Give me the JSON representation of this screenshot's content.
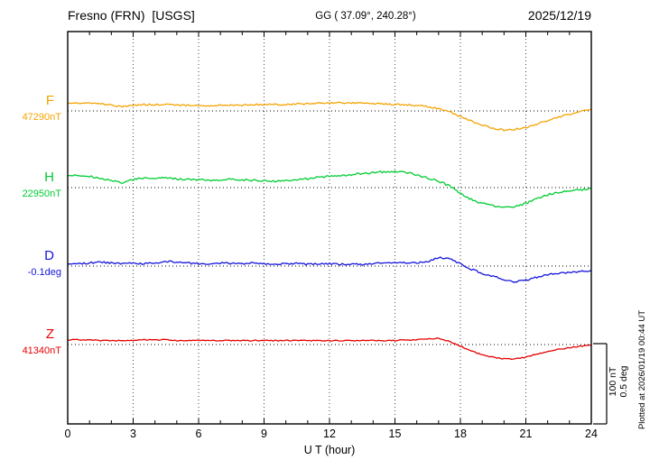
{
  "header": {
    "station": "Fresno (FRN)  [USGS]",
    "coords": "GG ( 37.09°, 240.28°)",
    "date": "2025/12/19"
  },
  "xlabel": "U T (hour)",
  "scale_bar": {
    "line1": "100 nT",
    "line2": "0.5 deg"
  },
  "footer_note": "Plotted at 2026/01/19 00:44 UT",
  "chart_data": {
    "type": "line",
    "title": "Fresno (FRN) [USGS] magnetogram 2025/12/19",
    "x_unit": "hour",
    "x_range": [
      0,
      24
    ],
    "x_ticks": [
      0,
      3,
      6,
      9,
      12,
      15,
      18,
      21,
      24
    ],
    "x_step_hours": 0.5,
    "grid": "dotted-vertical-every-3h-and-dotted-baselines",
    "scale": {
      "nT_per_division": 100,
      "deg_per_division": 0.5
    },
    "series": [
      {
        "id": "F",
        "label": "F",
        "baseline_label": "47290nT",
        "baseline_value": 47290,
        "unit": "nT",
        "color": "#f5a300",
        "offsets": [
          9,
          10,
          10,
          9,
          7,
          5,
          7,
          8,
          8,
          8,
          7,
          7,
          7,
          6,
          7,
          7,
          7,
          8,
          8,
          8,
          8,
          9,
          9,
          10,
          10,
          10,
          10,
          10,
          9,
          9,
          8,
          8,
          7,
          5,
          3,
          -1,
          -7,
          -13,
          -18,
          -22,
          -24,
          -23,
          -21,
          -17,
          -12,
          -8,
          -4,
          -1,
          2
        ]
      },
      {
        "id": "H",
        "label": "H",
        "baseline_label": "22950nT",
        "baseline_value": 22950,
        "unit": "nT",
        "color": "#00cc33",
        "offsets": [
          16,
          15,
          14,
          12,
          9,
          6,
          10,
          12,
          12,
          13,
          11,
          10,
          10,
          9,
          10,
          11,
          10,
          9,
          9,
          8,
          9,
          10,
          11,
          13,
          14,
          15,
          16,
          18,
          19,
          20,
          20,
          19,
          16,
          12,
          8,
          2,
          -7,
          -15,
          -20,
          -23,
          -25,
          -24,
          -20,
          -14,
          -9,
          -6,
          -4,
          -3,
          -1
        ]
      },
      {
        "id": "D",
        "label": "D",
        "baseline_label": "-0.1deg",
        "baseline_value": -0.1,
        "unit": "deg",
        "color": "#1414dd",
        "offsets": [
          0.015,
          0.015,
          0.02,
          0.025,
          0.02,
          0.015,
          0.02,
          0.015,
          0.02,
          0.03,
          0.025,
          0.02,
          0.015,
          0.015,
          0.02,
          0.015,
          0.015,
          0.02,
          0.015,
          0.01,
          0.015,
          0.015,
          0.01,
          0.015,
          0.015,
          0.01,
          0.015,
          0.01,
          0.015,
          0.02,
          0.025,
          0.02,
          0.02,
          0.03,
          0.055,
          0.045,
          0.015,
          -0.02,
          -0.045,
          -0.065,
          -0.085,
          -0.1,
          -0.09,
          -0.07,
          -0.055,
          -0.045,
          -0.04,
          -0.035,
          -0.03
        ]
      },
      {
        "id": "Z",
        "label": "Z",
        "baseline_label": "41340nT",
        "baseline_value": 41340,
        "unit": "nT",
        "color": "#e60000",
        "offsets": [
          6,
          6,
          6,
          5,
          5,
          5,
          5,
          6,
          6,
          6,
          5,
          5,
          5,
          5,
          5,
          5,
          5,
          5,
          5,
          5,
          5,
          5,
          5,
          5,
          5,
          5,
          5,
          5,
          5,
          5,
          5,
          6,
          6,
          7,
          8,
          4,
          -2,
          -8,
          -13,
          -16,
          -18,
          -18,
          -16,
          -12,
          -9,
          -6,
          -4,
          -2,
          -1
        ]
      }
    ]
  }
}
